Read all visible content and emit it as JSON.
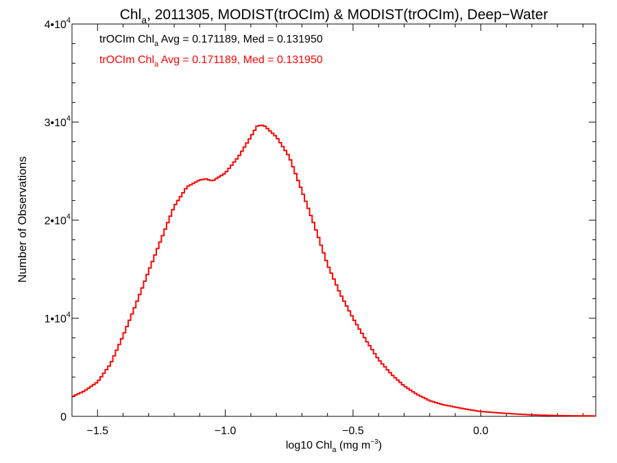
{
  "chart_data": {
    "type": "line",
    "title": {
      "prefix": "Chl",
      "sub": "a",
      "rest": ", 2011305, MODIST(trOCIm) & MODIST(trOCIm), Deep−Water"
    },
    "xlabel": {
      "prefix": "log10 Chl",
      "sub": "a",
      "rest": " (mg m",
      "sup": "−3",
      "close": ")"
    },
    "ylabel": "Number of Observations",
    "xlim": [
      -1.6,
      0.45
    ],
    "ylim": [
      0,
      40000
    ],
    "x_ticks": [
      {
        "value": -1.5,
        "label": "−1.5"
      },
      {
        "value": -1.0,
        "label": "−1.0"
      },
      {
        "value": -0.5,
        "label": "−0.5"
      },
      {
        "value": 0.0,
        "label": "0.0"
      }
    ],
    "y_ticks": [
      {
        "value": 0,
        "label": "0",
        "exp": ""
      },
      {
        "value": 10000,
        "label": "1•10",
        "exp": "4"
      },
      {
        "value": 20000,
        "label": "2•10",
        "exp": "4"
      },
      {
        "value": 30000,
        "label": "3•10",
        "exp": "4"
      },
      {
        "value": 40000,
        "label": "4•10",
        "exp": "4"
      }
    ],
    "annotations": [
      {
        "prefix": "trOCIm Chl",
        "sub": "a",
        "rest": " Avg = 0.171189, Med = 0.131950",
        "color": "#000000"
      },
      {
        "prefix": "trOCIm Chl",
        "sub": "a",
        "rest": " Avg = 0.171189, Med = 0.131950",
        "color": "#ff0000"
      }
    ],
    "series": [
      {
        "color": "#ff0000",
        "x": [
          -1.6,
          -1.55,
          -1.5,
          -1.45,
          -1.4,
          -1.35,
          -1.3,
          -1.25,
          -1.2,
          -1.15,
          -1.1,
          -1.075,
          -1.05,
          -1.0,
          -0.95,
          -0.9,
          -0.875,
          -0.85,
          -0.8,
          -0.75,
          -0.7,
          -0.65,
          -0.6,
          -0.55,
          -0.5,
          -0.45,
          -0.4,
          -0.35,
          -0.3,
          -0.25,
          -0.2,
          -0.15,
          -0.1,
          -0.05,
          0.0,
          0.1,
          0.2,
          0.3,
          0.45
        ],
        "y": [
          2000,
          2600,
          3500,
          5300,
          8200,
          11400,
          14800,
          18100,
          21400,
          23400,
          24100,
          24200,
          24000,
          24800,
          26400,
          28500,
          29600,
          29700,
          28500,
          26500,
          23000,
          19400,
          15500,
          12500,
          10000,
          7800,
          5800,
          4300,
          3100,
          2250,
          1600,
          1200,
          950,
          700,
          500,
          300,
          150,
          80,
          40
        ]
      }
    ]
  }
}
